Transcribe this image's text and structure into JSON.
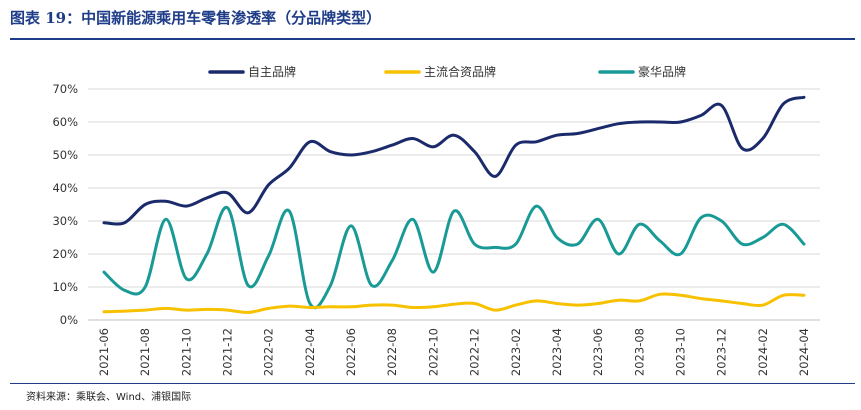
{
  "header": {
    "title_label": "图表 19：",
    "title_text": "中国新能源乘用车零售渗透率（分品牌类型）"
  },
  "footer": {
    "source": "资料来源：乘联会、Wind、浦银国际"
  },
  "chart_data": {
    "type": "line",
    "title": "中国新能源乘用车零售渗透率（分品牌类型）",
    "xlabel": "",
    "ylabel": "",
    "ylim": [
      0,
      70
    ],
    "yticks": [
      "0%",
      "10%",
      "20%",
      "30%",
      "40%",
      "50%",
      "60%",
      "70%"
    ],
    "grid": true,
    "legend_position": "top",
    "x": [
      "2021-06",
      "2021-07",
      "2021-08",
      "2021-09",
      "2021-10",
      "2021-11",
      "2021-12",
      "2022-01",
      "2022-02",
      "2022-03",
      "2022-04",
      "2022-05",
      "2022-06",
      "2022-07",
      "2022-08",
      "2022-09",
      "2022-10",
      "2022-11",
      "2022-12",
      "2023-01",
      "2023-02",
      "2023-03",
      "2023-04",
      "2023-05",
      "2023-06",
      "2023-07",
      "2023-08",
      "2023-09",
      "2023-10",
      "2023-11",
      "2023-12",
      "2024-01",
      "2024-02",
      "2024-03",
      "2024-04"
    ],
    "xtick_labels": [
      "2021-06",
      "2021-08",
      "2021-10",
      "2021-12",
      "2022-02",
      "2022-04",
      "2022-06",
      "2022-08",
      "2022-10",
      "2022-12",
      "2023-02",
      "2023-04",
      "2023-06",
      "2023-08",
      "2023-10",
      "2023-12",
      "2024-02",
      "2024-04"
    ],
    "series": [
      {
        "name": "自主品牌",
        "color": "#1b2a6b",
        "values": [
          29.5,
          29.5,
          35,
          36,
          34.5,
          37,
          38.5,
          32.5,
          41,
          46,
          54,
          51,
          50,
          51,
          53,
          55,
          52.5,
          56,
          51,
          43.5,
          53,
          54,
          56,
          56.5,
          58,
          59.5,
          60,
          60,
          60,
          62,
          65,
          52,
          55,
          65.5,
          67.5
        ]
      },
      {
        "name": "主流合资品牌",
        "color": "#f7c100",
        "values": [
          2.5,
          2.7,
          3,
          3.5,
          3,
          3.2,
          3,
          2.3,
          3.5,
          4.2,
          3.8,
          4,
          4,
          4.5,
          4.5,
          3.8,
          4,
          4.8,
          5,
          3,
          4.5,
          5.8,
          5,
          4.5,
          5,
          6,
          5.8,
          7.8,
          7.5,
          6.5,
          5.8,
          5,
          4.5,
          7.5,
          7.5
        ]
      },
      {
        "name": "豪华品牌",
        "color": "#1a9a96",
        "values": [
          14.5,
          9,
          10,
          30.5,
          12.5,
          20,
          34,
          10.5,
          19.5,
          33,
          5,
          10.5,
          28.5,
          10.5,
          18,
          30.5,
          14.5,
          33,
          23,
          22,
          23,
          34.5,
          25,
          23,
          30.5,
          20,
          29,
          24,
          20,
          31,
          30,
          23,
          25,
          29,
          23
        ]
      }
    ]
  }
}
